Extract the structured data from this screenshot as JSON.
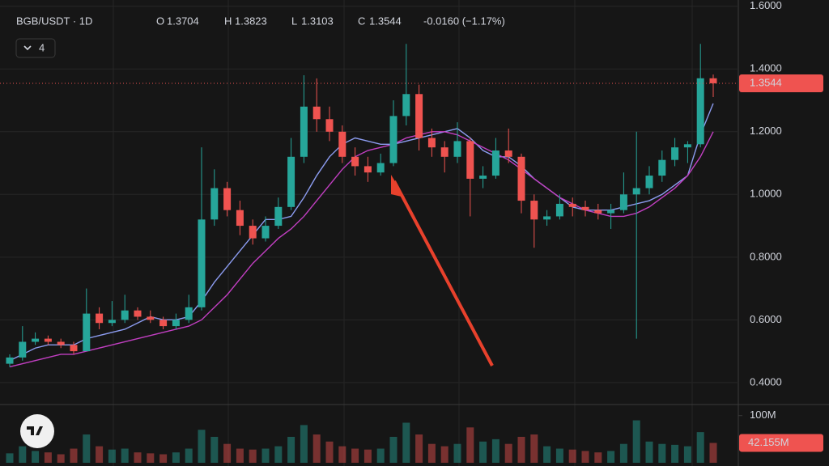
{
  "chart_data": {
    "type": "candlestick",
    "title": "BGB/USDT · 1D",
    "ohlc_labels": [
      "O",
      "H",
      "L",
      "C"
    ],
    "change": "-0.0160 (−1.17%)",
    "indicator_count": "4",
    "up_color": "#26a69a",
    "down_color": "#ef5350",
    "ylim": [
      0.33,
      1.62
    ],
    "yticks": [
      {
        "value": 1.6,
        "label": "1.6000"
      },
      {
        "value": 1.4,
        "label": "1.4000"
      },
      {
        "value": 1.2,
        "label": "1.2000"
      },
      {
        "value": 1.0,
        "label": "1.0000"
      },
      {
        "value": 0.8,
        "label": "0.8000"
      },
      {
        "value": 0.6,
        "label": "0.6000"
      },
      {
        "value": 0.4,
        "label": "0.4000"
      }
    ],
    "grid": true,
    "ohlc": [
      [
        0.46,
        0.49,
        0.45,
        0.48
      ],
      [
        0.48,
        0.58,
        0.47,
        0.53
      ],
      [
        0.53,
        0.56,
        0.52,
        0.54
      ],
      [
        0.54,
        0.55,
        0.52,
        0.53
      ],
      [
        0.53,
        0.54,
        0.51,
        0.52
      ],
      [
        0.52,
        0.53,
        0.49,
        0.5
      ],
      [
        0.5,
        0.7,
        0.5,
        0.62
      ],
      [
        0.62,
        0.64,
        0.57,
        0.59
      ],
      [
        0.59,
        0.66,
        0.58,
        0.6
      ],
      [
        0.6,
        0.68,
        0.59,
        0.63
      ],
      [
        0.63,
        0.64,
        0.6,
        0.61
      ],
      [
        0.61,
        0.63,
        0.59,
        0.6
      ],
      [
        0.6,
        0.61,
        0.57,
        0.58
      ],
      [
        0.58,
        0.62,
        0.57,
        0.6
      ],
      [
        0.6,
        0.68,
        0.59,
        0.64
      ],
      [
        0.64,
        1.15,
        0.63,
        0.92
      ],
      [
        0.92,
        1.08,
        0.9,
        1.02
      ],
      [
        1.02,
        1.04,
        0.93,
        0.95
      ],
      [
        0.95,
        0.98,
        0.87,
        0.9
      ],
      [
        0.9,
        0.92,
        0.84,
        0.86
      ],
      [
        0.86,
        0.93,
        0.85,
        0.9
      ],
      [
        0.9,
        0.99,
        0.89,
        0.96
      ],
      [
        0.96,
        1.18,
        0.95,
        1.12
      ],
      [
        1.12,
        1.38,
        1.1,
        1.28
      ],
      [
        1.28,
        1.37,
        1.2,
        1.24
      ],
      [
        1.24,
        1.28,
        1.17,
        1.2
      ],
      [
        1.2,
        1.22,
        1.1,
        1.12
      ],
      [
        1.12,
        1.15,
        1.06,
        1.09
      ],
      [
        1.09,
        1.12,
        1.04,
        1.07
      ],
      [
        1.07,
        1.13,
        1.06,
        1.1
      ],
      [
        1.1,
        1.3,
        1.09,
        1.25
      ],
      [
        1.25,
        1.48,
        1.22,
        1.32
      ],
      [
        1.32,
        1.35,
        1.14,
        1.18
      ],
      [
        1.18,
        1.21,
        1.12,
        1.15
      ],
      [
        1.15,
        1.17,
        1.07,
        1.12
      ],
      [
        1.12,
        1.23,
        1.1,
        1.17
      ],
      [
        1.17,
        1.18,
        0.93,
        1.05
      ],
      [
        1.05,
        1.09,
        1.02,
        1.06
      ],
      [
        1.06,
        1.18,
        1.05,
        1.14
      ],
      [
        1.14,
        1.21,
        1.1,
        1.12
      ],
      [
        1.12,
        1.13,
        0.94,
        0.98
      ],
      [
        0.98,
        1.0,
        0.83,
        0.92
      ],
      [
        0.92,
        0.95,
        0.9,
        0.93
      ],
      [
        0.93,
        1.0,
        0.92,
        0.97
      ],
      [
        0.97,
        0.99,
        0.93,
        0.96
      ],
      [
        0.96,
        0.98,
        0.93,
        0.95
      ],
      [
        0.95,
        0.97,
        0.92,
        0.94
      ],
      [
        0.94,
        0.97,
        0.89,
        0.95
      ],
      [
        0.95,
        1.07,
        0.94,
        1.0
      ],
      [
        1.0,
        1.2,
        0.54,
        1.02
      ],
      [
        1.02,
        1.09,
        1.0,
        1.06
      ],
      [
        1.06,
        1.14,
        1.04,
        1.11
      ],
      [
        1.11,
        1.18,
        1.09,
        1.15
      ],
      [
        1.15,
        1.17,
        1.1,
        1.16
      ],
      [
        1.16,
        1.48,
        1.15,
        1.3704
      ],
      [
        1.3704,
        1.3823,
        1.3103,
        1.3544
      ]
    ],
    "series": [
      {
        "color": "#8c9cf0",
        "values": [
          0.47,
          0.49,
          0.51,
          0.52,
          0.52,
          0.52,
          0.54,
          0.55,
          0.56,
          0.57,
          0.59,
          0.61,
          0.6,
          0.6,
          0.61,
          0.66,
          0.72,
          0.77,
          0.82,
          0.87,
          0.92,
          0.92,
          0.93,
          0.99,
          1.06,
          1.12,
          1.16,
          1.18,
          1.17,
          1.16,
          1.16,
          1.17,
          1.18,
          1.19,
          1.2,
          1.21,
          1.18,
          1.14,
          1.12,
          1.12,
          1.09,
          1.05,
          1.02,
          0.99,
          0.96,
          0.95,
          0.95,
          0.95,
          0.96,
          0.97,
          0.98,
          1.0,
          1.03,
          1.06,
          1.19,
          1.29
        ]
      },
      {
        "color": "#c23fc2",
        "values": [
          0.45,
          0.46,
          0.47,
          0.48,
          0.49,
          0.49,
          0.5,
          0.51,
          0.52,
          0.53,
          0.54,
          0.55,
          0.56,
          0.57,
          0.58,
          0.6,
          0.64,
          0.68,
          0.73,
          0.78,
          0.82,
          0.86,
          0.89,
          0.93,
          0.98,
          1.03,
          1.08,
          1.12,
          1.14,
          1.15,
          1.16,
          1.18,
          1.19,
          1.2,
          1.2,
          1.19,
          1.17,
          1.15,
          1.13,
          1.11,
          1.08,
          1.05,
          1.02,
          0.99,
          0.97,
          0.95,
          0.94,
          0.93,
          0.93,
          0.94,
          0.96,
          0.99,
          1.02,
          1.06,
          1.12,
          1.2
        ]
      }
    ],
    "volume": [
      20,
      35,
      25,
      22,
      18,
      30,
      60,
      35,
      28,
      30,
      22,
      20,
      18,
      22,
      30,
      70,
      55,
      40,
      30,
      28,
      30,
      35,
      55,
      80,
      60,
      45,
      35,
      30,
      28,
      30,
      55,
      85,
      60,
      40,
      35,
      40,
      75,
      45,
      50,
      40,
      55,
      60,
      35,
      30,
      28,
      25,
      22,
      25,
      40,
      90,
      45,
      40,
      38,
      35,
      65,
      42.155
    ],
    "volume_labels": {
      "55": "42.155M"
    },
    "vlim": [
      0,
      115
    ],
    "vticks": [
      {
        "value": 100,
        "label": "100M"
      }
    ]
  }
}
